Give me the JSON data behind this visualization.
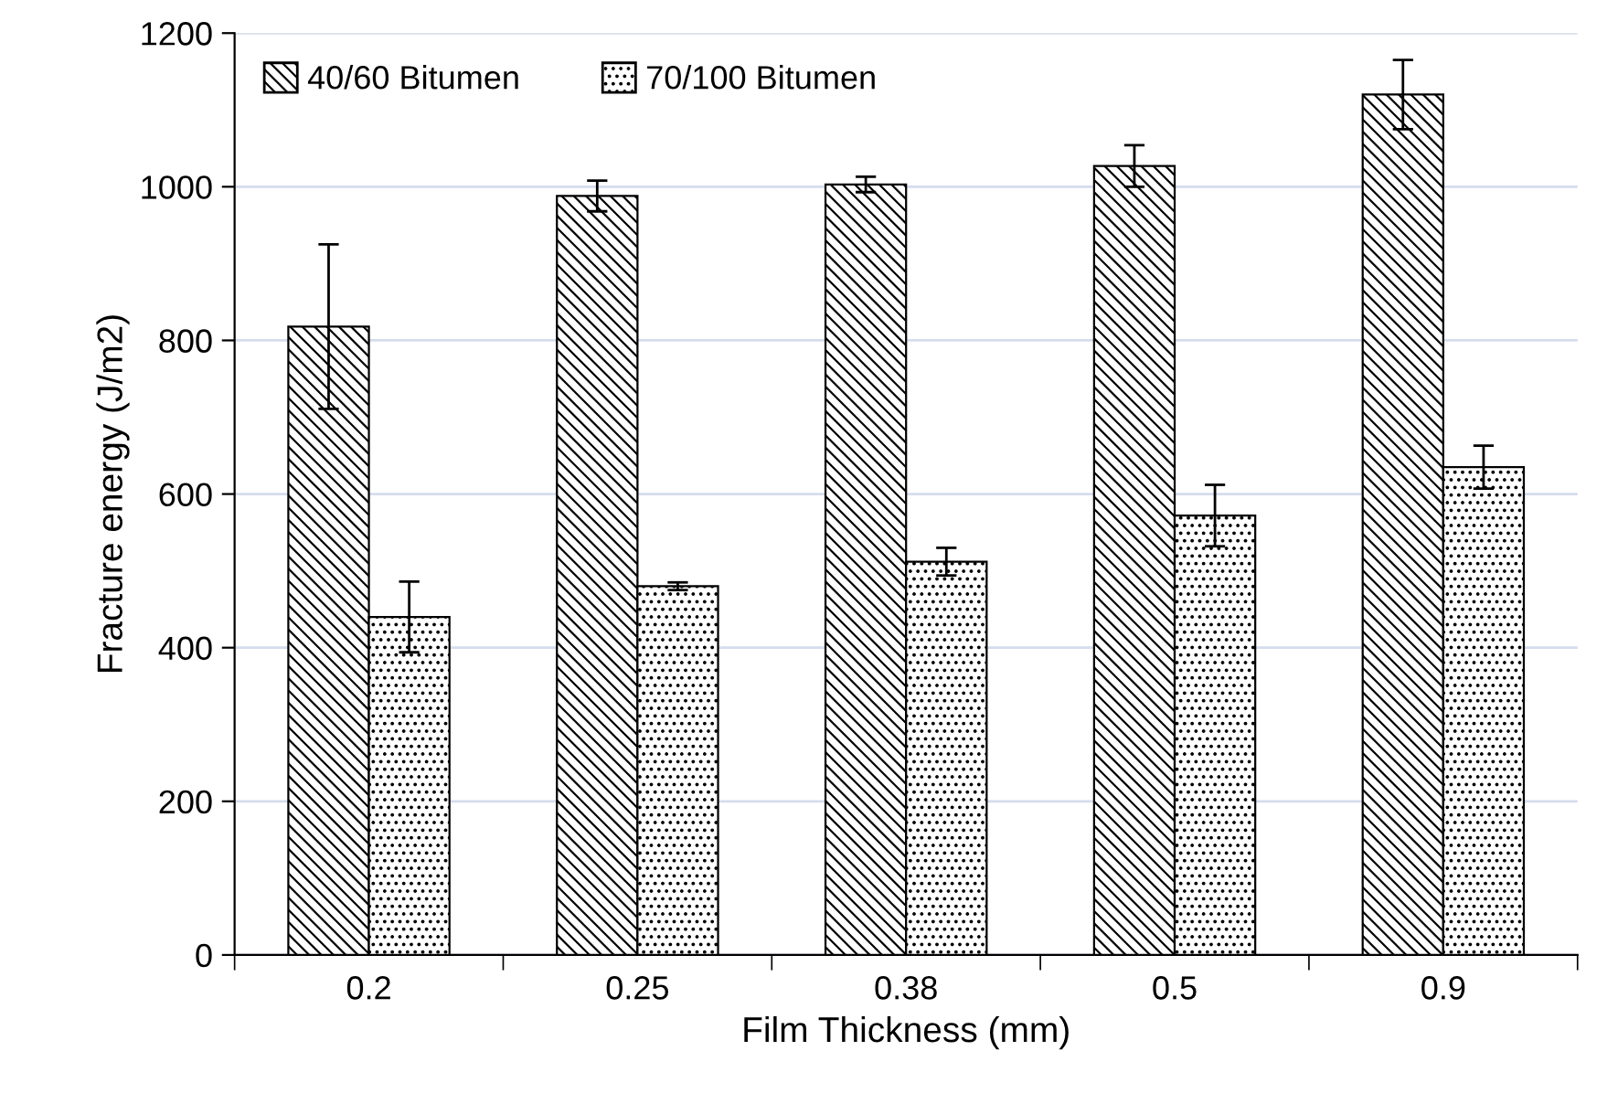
{
  "chart_data": {
    "type": "bar",
    "xlabel": "Film Thickness (mm)",
    "ylabel": "Fracture energy (J/m2)",
    "categories": [
      "0.2",
      "0.25",
      "0.38",
      "0.5",
      "0.9"
    ],
    "series": [
      {
        "name": "40/60 Bitumen",
        "color": "#000000",
        "values": [
          818,
          988,
          1003,
          1027,
          1120
        ],
        "errors": [
          107,
          20,
          10,
          27,
          45
        ]
      },
      {
        "name": "70/100 Bitumen",
        "color": "#000000",
        "values": [
          440,
          480,
          512,
          572,
          635
        ],
        "errors": [
          46,
          5,
          18,
          40,
          28
        ]
      }
    ],
    "ylim": [
      0,
      1200
    ],
    "yticks": [
      0,
      200,
      400,
      600,
      800,
      1000,
      1200
    ],
    "grid": "y",
    "legend": "top left"
  }
}
